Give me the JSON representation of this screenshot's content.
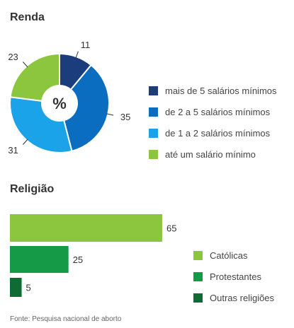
{
  "colors": {
    "mais5": "#1b3d7c",
    "de2a5": "#0a6dc0",
    "de1a2": "#1aa3e8",
    "ate1": "#8cc63f",
    "catolicas": "#8cc63f",
    "protestantes": "#159a48",
    "outras": "#0e6b34"
  },
  "renda": {
    "title": "Renda",
    "center_label": "%"
  },
  "religiao": {
    "title": "Religião"
  },
  "source": "Fonte: Pesquisa nacional de aborto",
  "chart_data": [
    {
      "type": "pie",
      "title": "Renda",
      "center_label": "%",
      "legend_position": "right",
      "categories": [
        "mais de 5 salários mínimos",
        "de 2 a 5 salários mínimos",
        "de 1 a 2 salários mínimos",
        "até um salário mínimo"
      ],
      "values": [
        11,
        35,
        31,
        23
      ],
      "colors": [
        "#1b3d7c",
        "#0a6dc0",
        "#1aa3e8",
        "#8cc63f"
      ]
    },
    {
      "type": "bar",
      "orientation": "horizontal",
      "title": "Religião",
      "legend_position": "right",
      "categories": [
        "Católicas",
        "Protestantes",
        "Outras religiões"
      ],
      "values": [
        65,
        25,
        5
      ],
      "colors": [
        "#8cc63f",
        "#159a48",
        "#0e6b34"
      ]
    }
  ]
}
